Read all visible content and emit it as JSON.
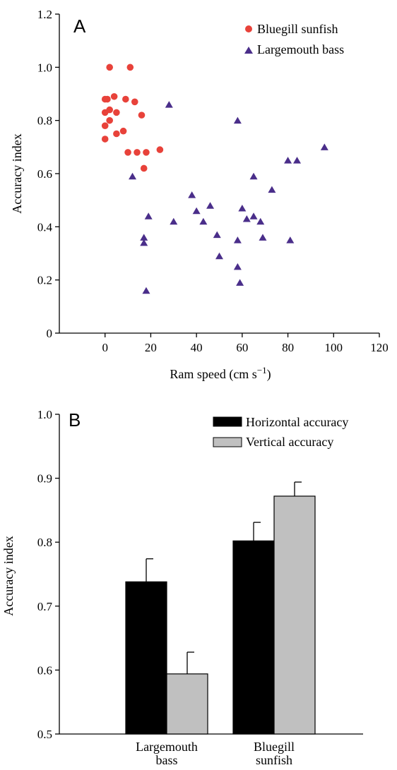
{
  "chart_data": [
    {
      "panel": "A",
      "type": "scatter",
      "xlabel": "Ram speed (cm s",
      "xlabel_sup": "−1",
      "xlabel_end": ")",
      "ylabel": "Accuracy index",
      "xlim": [
        -20,
        120
      ],
      "ylim": [
        0,
        1.2
      ],
      "xticks": [
        0,
        20,
        40,
        60,
        80,
        100,
        120
      ],
      "xtick_labels": [
        "0",
        "20",
        "40",
        "60",
        "80",
        "100",
        "120"
      ],
      "yticks": [
        0,
        0.2,
        0.4,
        0.6,
        0.8,
        1.0,
        1.2
      ],
      "ytick_labels": [
        "0",
        "0.2",
        "0.4",
        "0.6",
        "0.8",
        "1.0",
        "1.2"
      ],
      "legend_position": "top-right",
      "series": [
        {
          "name": "Bluegill sunfish",
          "marker": "circle",
          "color": "#e8423a",
          "points": [
            [
              2,
              1.0
            ],
            [
              11,
              1.0
            ],
            [
              0,
              0.88
            ],
            [
              1,
              0.88
            ],
            [
              4,
              0.89
            ],
            [
              9,
              0.88
            ],
            [
              13,
              0.87
            ],
            [
              0,
              0.83
            ],
            [
              2,
              0.84
            ],
            [
              5,
              0.83
            ],
            [
              16,
              0.82
            ],
            [
              2,
              0.8
            ],
            [
              0,
              0.78
            ],
            [
              5,
              0.75
            ],
            [
              8,
              0.76
            ],
            [
              0,
              0.73
            ],
            [
              10,
              0.68
            ],
            [
              14,
              0.68
            ],
            [
              18,
              0.68
            ],
            [
              24,
              0.69
            ],
            [
              17,
              0.62
            ]
          ]
        },
        {
          "name": "Largemouth bass",
          "marker": "triangle",
          "color": "#4a2e8a",
          "points": [
            [
              28,
              0.86
            ],
            [
              58,
              0.8
            ],
            [
              12,
              0.59
            ],
            [
              96,
              0.7
            ],
            [
              80,
              0.65
            ],
            [
              84,
              0.65
            ],
            [
              65,
              0.59
            ],
            [
              73,
              0.54
            ],
            [
              38,
              0.52
            ],
            [
              40,
              0.46
            ],
            [
              46,
              0.48
            ],
            [
              43,
              0.42
            ],
            [
              30,
              0.42
            ],
            [
              19,
              0.44
            ],
            [
              60,
              0.47
            ],
            [
              62,
              0.43
            ],
            [
              65,
              0.44
            ],
            [
              68,
              0.42
            ],
            [
              49,
              0.37
            ],
            [
              17,
              0.36
            ],
            [
              17,
              0.34
            ],
            [
              58,
              0.35
            ],
            [
              69,
              0.36
            ],
            [
              81,
              0.35
            ],
            [
              50,
              0.29
            ],
            [
              58,
              0.25
            ],
            [
              59,
              0.19
            ],
            [
              18,
              0.16
            ]
          ]
        }
      ]
    },
    {
      "panel": "B",
      "type": "bar",
      "ylabel": "Accuracy index",
      "ylim": [
        0.5,
        1.0
      ],
      "yticks": [
        0.5,
        0.6,
        0.7,
        0.8,
        0.9,
        1.0
      ],
      "ytick_labels": [
        "0.5",
        "0.6",
        "0.7",
        "0.8",
        "0.9",
        "1.0"
      ],
      "categories": [
        [
          "Largemouth",
          "bass"
        ],
        [
          "Bluegill",
          "sunfish"
        ]
      ],
      "legend_position": "top-right",
      "series": [
        {
          "name": "Horizontal accuracy",
          "color": "#000000",
          "values": [
            0.738,
            0.802
          ],
          "errors": [
            0.036,
            0.029
          ]
        },
        {
          "name": "Vertical accuracy",
          "color": "#c0c0c0",
          "values": [
            0.594,
            0.872
          ],
          "errors": [
            0.034,
            0.022
          ]
        }
      ]
    }
  ]
}
